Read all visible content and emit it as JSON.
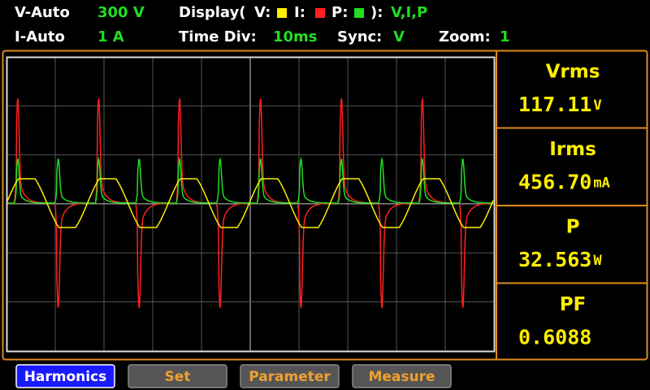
{
  "status": {
    "row1": {
      "range_label": "V-Auto",
      "range_value": "300 V",
      "display_label": "Display(",
      "v_label": "V:",
      "i_label": "I:",
      "p_label": "P:",
      "display_close": "):",
      "display_value": "V,I,P"
    },
    "row2": {
      "range_label": "I-Auto",
      "range_value": "1 A",
      "timediv_label": "Time Div:",
      "timediv_value": "10ms",
      "sync_label": "Sync:",
      "sync_value": "V",
      "zoom_label": "Zoom:",
      "zoom_value": "1"
    }
  },
  "readings": [
    {
      "label": "Vrms",
      "value": "117.11",
      "unit": "V"
    },
    {
      "label": "Irms",
      "value": "456.70",
      "unit": "mA"
    },
    {
      "label": "P",
      "value": "32.563",
      "unit": "W"
    },
    {
      "label": "PF",
      "value": "0.6088",
      "unit": ""
    }
  ],
  "buttons": [
    "Harmonics",
    "Set",
    "Parameter",
    "Measure"
  ]
}
